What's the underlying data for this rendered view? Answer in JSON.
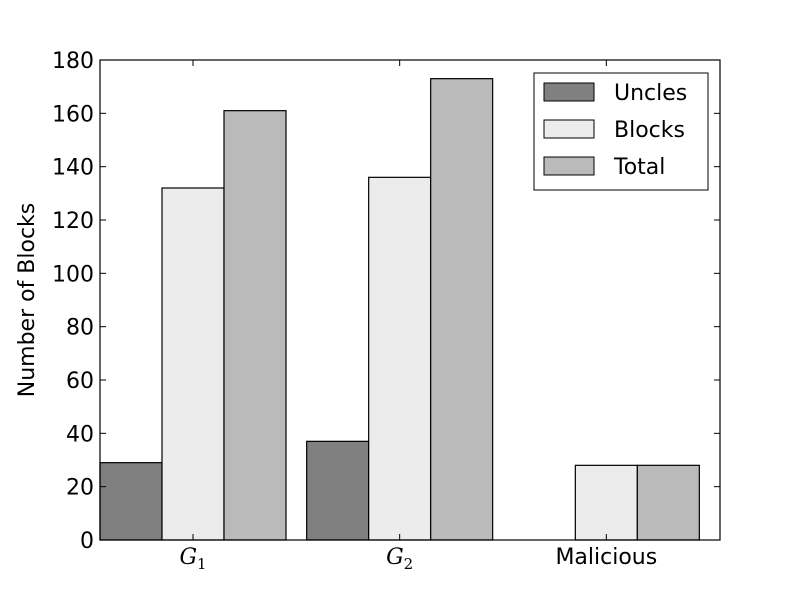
{
  "chart_data": {
    "type": "bar",
    "categories": [
      "G1",
      "G2",
      "Malicious"
    ],
    "category_display": [
      {
        "main": "G",
        "sub": "1"
      },
      {
        "main": "G",
        "sub": "2"
      },
      {
        "main": "Malicious",
        "sub": ""
      }
    ],
    "series": [
      {
        "name": "Uncles",
        "values": [
          29,
          37,
          0
        ],
        "color": "#808080"
      },
      {
        "name": "Blocks",
        "values": [
          132,
          136,
          28
        ],
        "color": "#ececec"
      },
      {
        "name": "Total",
        "values": [
          161,
          173,
          28
        ],
        "color": "#bababa"
      }
    ],
    "ylabel": "Number of Blocks",
    "xlabel": "",
    "title": "",
    "ylim": [
      0,
      180
    ],
    "yticks": [
      0,
      20,
      40,
      60,
      80,
      100,
      120,
      140,
      160,
      180
    ],
    "legend": "top-right",
    "grid": false
  }
}
